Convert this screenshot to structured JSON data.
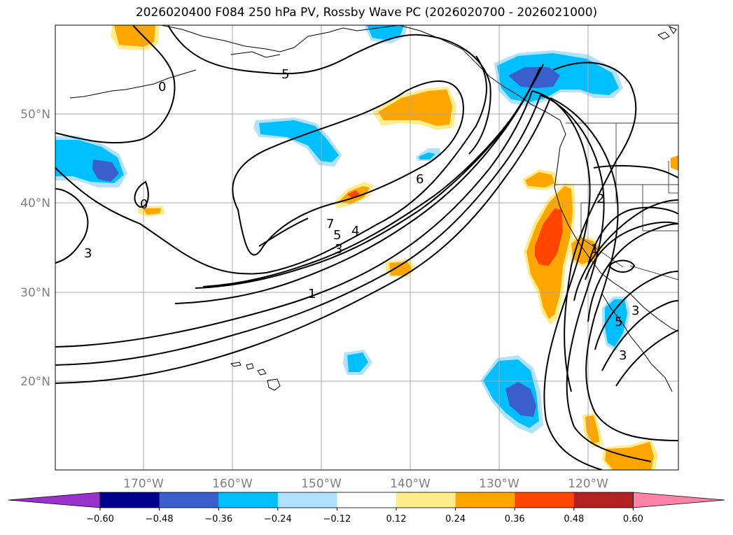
{
  "title": "2026020400 F084 250 hPa PV, Rossby Wave PC (2026020700 - 2026021000)",
  "lat_labels": [
    "50°N",
    "40°N",
    "30°N",
    "20°N"
  ],
  "lon_labels": [
    "170°W",
    "160°W",
    "150°W",
    "140°W",
    "130°W",
    "120°W"
  ],
  "colorbar": {
    "ticks": [
      "−0.60",
      "−0.48",
      "−0.36",
      "−0.24",
      "−0.12",
      "0.12",
      "0.24",
      "0.36",
      "0.48",
      "0.60"
    ],
    "colors": [
      "#9932cc",
      "#00008b",
      "#3a5fcd",
      "#00bfff",
      "#b0e2ff",
      "#ffffff",
      "#ffec8b",
      "#ffa500",
      "#ff4500",
      "#b22222",
      "#ff82ab"
    ]
  },
  "contour_labels": [
    "5",
    "6",
    "7",
    "5",
    "4",
    "3",
    "1",
    "3",
    "2",
    "1",
    "0",
    "0",
    "5",
    "3",
    "3"
  ],
  "colors": {
    "grid": "#a9a9a9",
    "axis_text": "#808080"
  }
}
